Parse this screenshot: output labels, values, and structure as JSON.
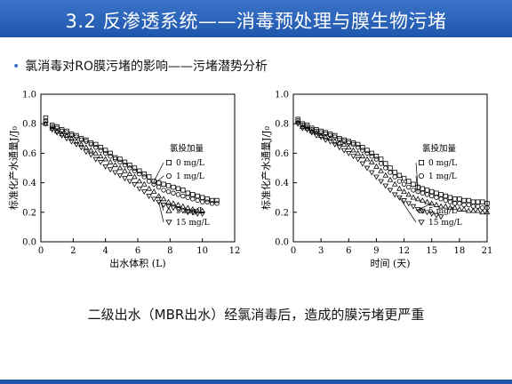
{
  "slide": {
    "title": "3.2 反渗透系统——消毒预处理与膜生物污堵",
    "bullet": "氯消毒对RO膜污堵的影响——污堵潜势分析",
    "caption": "二级出水（MBR出水）经氯消毒后，造成的膜污堵更严重"
  },
  "chart_data": [
    {
      "type": "scatter",
      "xlabel": "出水体积 (L)",
      "ylabel": "标准化产水通量J/J₀",
      "xlim": [
        0,
        12
      ],
      "ylim": [
        0,
        1.0
      ],
      "xticks": [
        0,
        2,
        4,
        6,
        8,
        10,
        12
      ],
      "yticks": [
        0.0,
        0.2,
        0.4,
        0.6,
        0.8,
        1.0
      ],
      "legend_title": "氯投加量",
      "legend_position": "right",
      "series": [
        {
          "name": "0 mg/L",
          "marker": "square",
          "x": [
            0.3,
            0.7,
            1.0,
            1.3,
            1.6,
            1.9,
            2.2,
            2.5,
            2.8,
            3.1,
            3.4,
            3.7,
            4.0,
            4.3,
            4.6,
            4.9,
            5.2,
            5.5,
            5.8,
            6.1,
            6.4,
            6.7,
            7.0,
            7.3,
            7.6,
            7.9,
            8.2,
            8.5,
            8.8,
            9.1,
            9.4,
            9.7,
            10.0,
            10.3,
            10.6,
            10.9
          ],
          "y": [
            0.84,
            0.79,
            0.78,
            0.76,
            0.75,
            0.73,
            0.72,
            0.7,
            0.69,
            0.67,
            0.66,
            0.64,
            0.62,
            0.6,
            0.57,
            0.56,
            0.54,
            0.52,
            0.5,
            0.48,
            0.46,
            0.44,
            0.41,
            0.4,
            0.39,
            0.38,
            0.37,
            0.36,
            0.35,
            0.33,
            0.32,
            0.31,
            0.3,
            0.29,
            0.28,
            0.28
          ]
        },
        {
          "name": "1 mg/L",
          "marker": "circle",
          "x": [
            0.3,
            0.7,
            1.0,
            1.3,
            1.6,
            1.9,
            2.2,
            2.5,
            2.8,
            3.1,
            3.4,
            3.7,
            4.0,
            4.3,
            4.6,
            4.9,
            5.2,
            5.5,
            5.8,
            6.1,
            6.4,
            6.7,
            7.0,
            7.3,
            7.6,
            7.9,
            8.2,
            8.5,
            8.8,
            9.1,
            9.4,
            9.7,
            10.0,
            10.3,
            10.6,
            10.9
          ],
          "y": [
            0.82,
            0.78,
            0.77,
            0.75,
            0.74,
            0.72,
            0.71,
            0.69,
            0.68,
            0.66,
            0.64,
            0.62,
            0.6,
            0.58,
            0.56,
            0.54,
            0.52,
            0.5,
            0.48,
            0.46,
            0.44,
            0.41,
            0.39,
            0.37,
            0.35,
            0.34,
            0.33,
            0.32,
            0.31,
            0.3,
            0.29,
            0.28,
            0.27,
            0.27,
            0.26,
            0.26
          ]
        },
        {
          "name": "5 mg/L",
          "marker": "triangle-up",
          "x": [
            0.3,
            0.7,
            1.0,
            1.3,
            1.6,
            1.9,
            2.2,
            2.5,
            2.8,
            3.1,
            3.4,
            3.7,
            4.0,
            4.3,
            4.6,
            4.9,
            5.2,
            5.5,
            5.8,
            6.1,
            6.4,
            6.7,
            7.0,
            7.3,
            7.6,
            7.9,
            8.2,
            8.5,
            8.8,
            9.1,
            9.4,
            9.7,
            10.0
          ],
          "y": [
            0.8,
            0.77,
            0.75,
            0.73,
            0.72,
            0.7,
            0.68,
            0.66,
            0.64,
            0.62,
            0.6,
            0.58,
            0.56,
            0.54,
            0.52,
            0.5,
            0.48,
            0.46,
            0.44,
            0.41,
            0.39,
            0.36,
            0.34,
            0.31,
            0.29,
            0.27,
            0.26,
            0.25,
            0.24,
            0.23,
            0.22,
            0.21,
            0.21
          ]
        },
        {
          "name": "15 mg/L",
          "marker": "triangle-down",
          "x": [
            0.3,
            0.7,
            1.0,
            1.3,
            1.6,
            1.9,
            2.2,
            2.5,
            2.8,
            3.1,
            3.4,
            3.7,
            4.0,
            4.3,
            4.6,
            4.9,
            5.2,
            5.5,
            5.8,
            6.1,
            6.4,
            6.7,
            7.0,
            7.3,
            7.6,
            7.9,
            8.2,
            8.5,
            8.8,
            9.1,
            9.4,
            9.7,
            10.0
          ],
          "y": [
            0.8,
            0.76,
            0.74,
            0.72,
            0.7,
            0.68,
            0.66,
            0.64,
            0.61,
            0.59,
            0.56,
            0.54,
            0.51,
            0.49,
            0.47,
            0.45,
            0.43,
            0.41,
            0.39,
            0.36,
            0.34,
            0.31,
            0.29,
            0.27,
            0.25,
            0.24,
            0.23,
            0.22,
            0.21,
            0.2,
            0.2,
            0.19,
            0.19
          ]
        }
      ]
    },
    {
      "type": "scatter",
      "xlabel": "时间 (天)",
      "ylabel": "标准化产水通量J/J₀",
      "xlim": [
        0,
        21
      ],
      "ylim": [
        0,
        1.0
      ],
      "xticks": [
        0,
        3,
        6,
        9,
        12,
        15,
        18,
        21
      ],
      "yticks": [
        0.0,
        0.2,
        0.4,
        0.6,
        0.8,
        1.0
      ],
      "legend_title": "氯投加量",
      "legend_position": "right",
      "series": [
        {
          "name": "0 mg/L",
          "marker": "square",
          "x": [
            0.5,
            1,
            1.5,
            2,
            2.5,
            3,
            3.5,
            4,
            4.5,
            5,
            5.5,
            6,
            6.5,
            7,
            7.5,
            8,
            8.5,
            9,
            9.5,
            10,
            10.5,
            11,
            11.5,
            12,
            12.5,
            13,
            13.5,
            14,
            14.5,
            15,
            15.5,
            16,
            16.5,
            17,
            17.5,
            18,
            18.5,
            19,
            19.5,
            20,
            20.5,
            21
          ],
          "y": [
            0.83,
            0.8,
            0.79,
            0.77,
            0.76,
            0.75,
            0.74,
            0.73,
            0.72,
            0.7,
            0.69,
            0.68,
            0.67,
            0.66,
            0.64,
            0.62,
            0.6,
            0.58,
            0.56,
            0.53,
            0.5,
            0.47,
            0.45,
            0.43,
            0.41,
            0.39,
            0.37,
            0.36,
            0.35,
            0.34,
            0.33,
            0.32,
            0.31,
            0.3,
            0.29,
            0.29,
            0.28,
            0.28,
            0.27,
            0.27,
            0.27,
            0.26
          ]
        },
        {
          "name": "1 mg/L",
          "marker": "circle",
          "x": [
            0.5,
            1,
            1.5,
            2,
            2.5,
            3,
            3.5,
            4,
            4.5,
            5,
            5.5,
            6,
            6.5,
            7,
            7.5,
            8,
            8.5,
            9,
            9.5,
            10,
            10.5,
            11,
            11.5,
            12,
            12.5,
            13,
            13.5,
            14,
            14.5,
            15,
            15.5,
            16,
            16.5,
            17,
            17.5,
            18,
            18.5,
            19,
            19.5,
            20,
            20.5,
            21
          ],
          "y": [
            0.82,
            0.79,
            0.78,
            0.76,
            0.75,
            0.74,
            0.73,
            0.72,
            0.71,
            0.69,
            0.68,
            0.67,
            0.66,
            0.64,
            0.62,
            0.6,
            0.58,
            0.56,
            0.53,
            0.5,
            0.47,
            0.44,
            0.41,
            0.39,
            0.37,
            0.35,
            0.34,
            0.33,
            0.32,
            0.31,
            0.3,
            0.29,
            0.28,
            0.27,
            0.26,
            0.26,
            0.25,
            0.25,
            0.24,
            0.24,
            0.23,
            0.23
          ]
        },
        {
          "name": "5 mg/L",
          "marker": "triangle-up",
          "x": [
            0.5,
            1,
            1.5,
            2,
            2.5,
            3,
            3.5,
            4,
            4.5,
            5,
            5.5,
            6,
            6.5,
            7,
            7.5,
            8,
            8.5,
            9,
            9.5,
            10,
            10.5,
            11,
            11.5,
            12,
            12.5,
            13,
            13.5,
            14,
            14.5,
            15,
            15.5,
            16,
            16.5,
            17,
            17.5,
            18,
            18.5,
            19,
            19.5,
            20,
            20.5,
            21
          ],
          "y": [
            0.81,
            0.78,
            0.77,
            0.75,
            0.74,
            0.72,
            0.71,
            0.7,
            0.68,
            0.67,
            0.66,
            0.64,
            0.62,
            0.6,
            0.58,
            0.56,
            0.54,
            0.51,
            0.48,
            0.45,
            0.42,
            0.39,
            0.36,
            0.34,
            0.32,
            0.3,
            0.29,
            0.28,
            0.27,
            0.26,
            0.25,
            0.24,
            0.24,
            0.23,
            0.23,
            0.22,
            0.22,
            0.21,
            0.21,
            0.21,
            0.2,
            0.2
          ]
        },
        {
          "name": "15 mg/L",
          "marker": "triangle-down",
          "x": [
            0.5,
            1,
            1.5,
            2,
            2.5,
            3,
            3.5,
            4,
            4.5,
            5,
            5.5,
            6,
            6.5,
            7,
            7.5,
            8,
            8.5,
            9,
            9.5,
            10,
            10.5,
            11,
            11.5,
            12,
            12.5,
            13,
            13.5,
            14,
            14.5,
            15,
            15.5,
            16
          ],
          "y": [
            0.8,
            0.77,
            0.76,
            0.74,
            0.72,
            0.71,
            0.69,
            0.68,
            0.66,
            0.64,
            0.62,
            0.6,
            0.58,
            0.56,
            0.53,
            0.5,
            0.47,
            0.44,
            0.41,
            0.38,
            0.35,
            0.32,
            0.3,
            0.28,
            0.26,
            0.24,
            0.22,
            0.21,
            0.2,
            0.19,
            0.18,
            0.17
          ]
        }
      ]
    }
  ]
}
